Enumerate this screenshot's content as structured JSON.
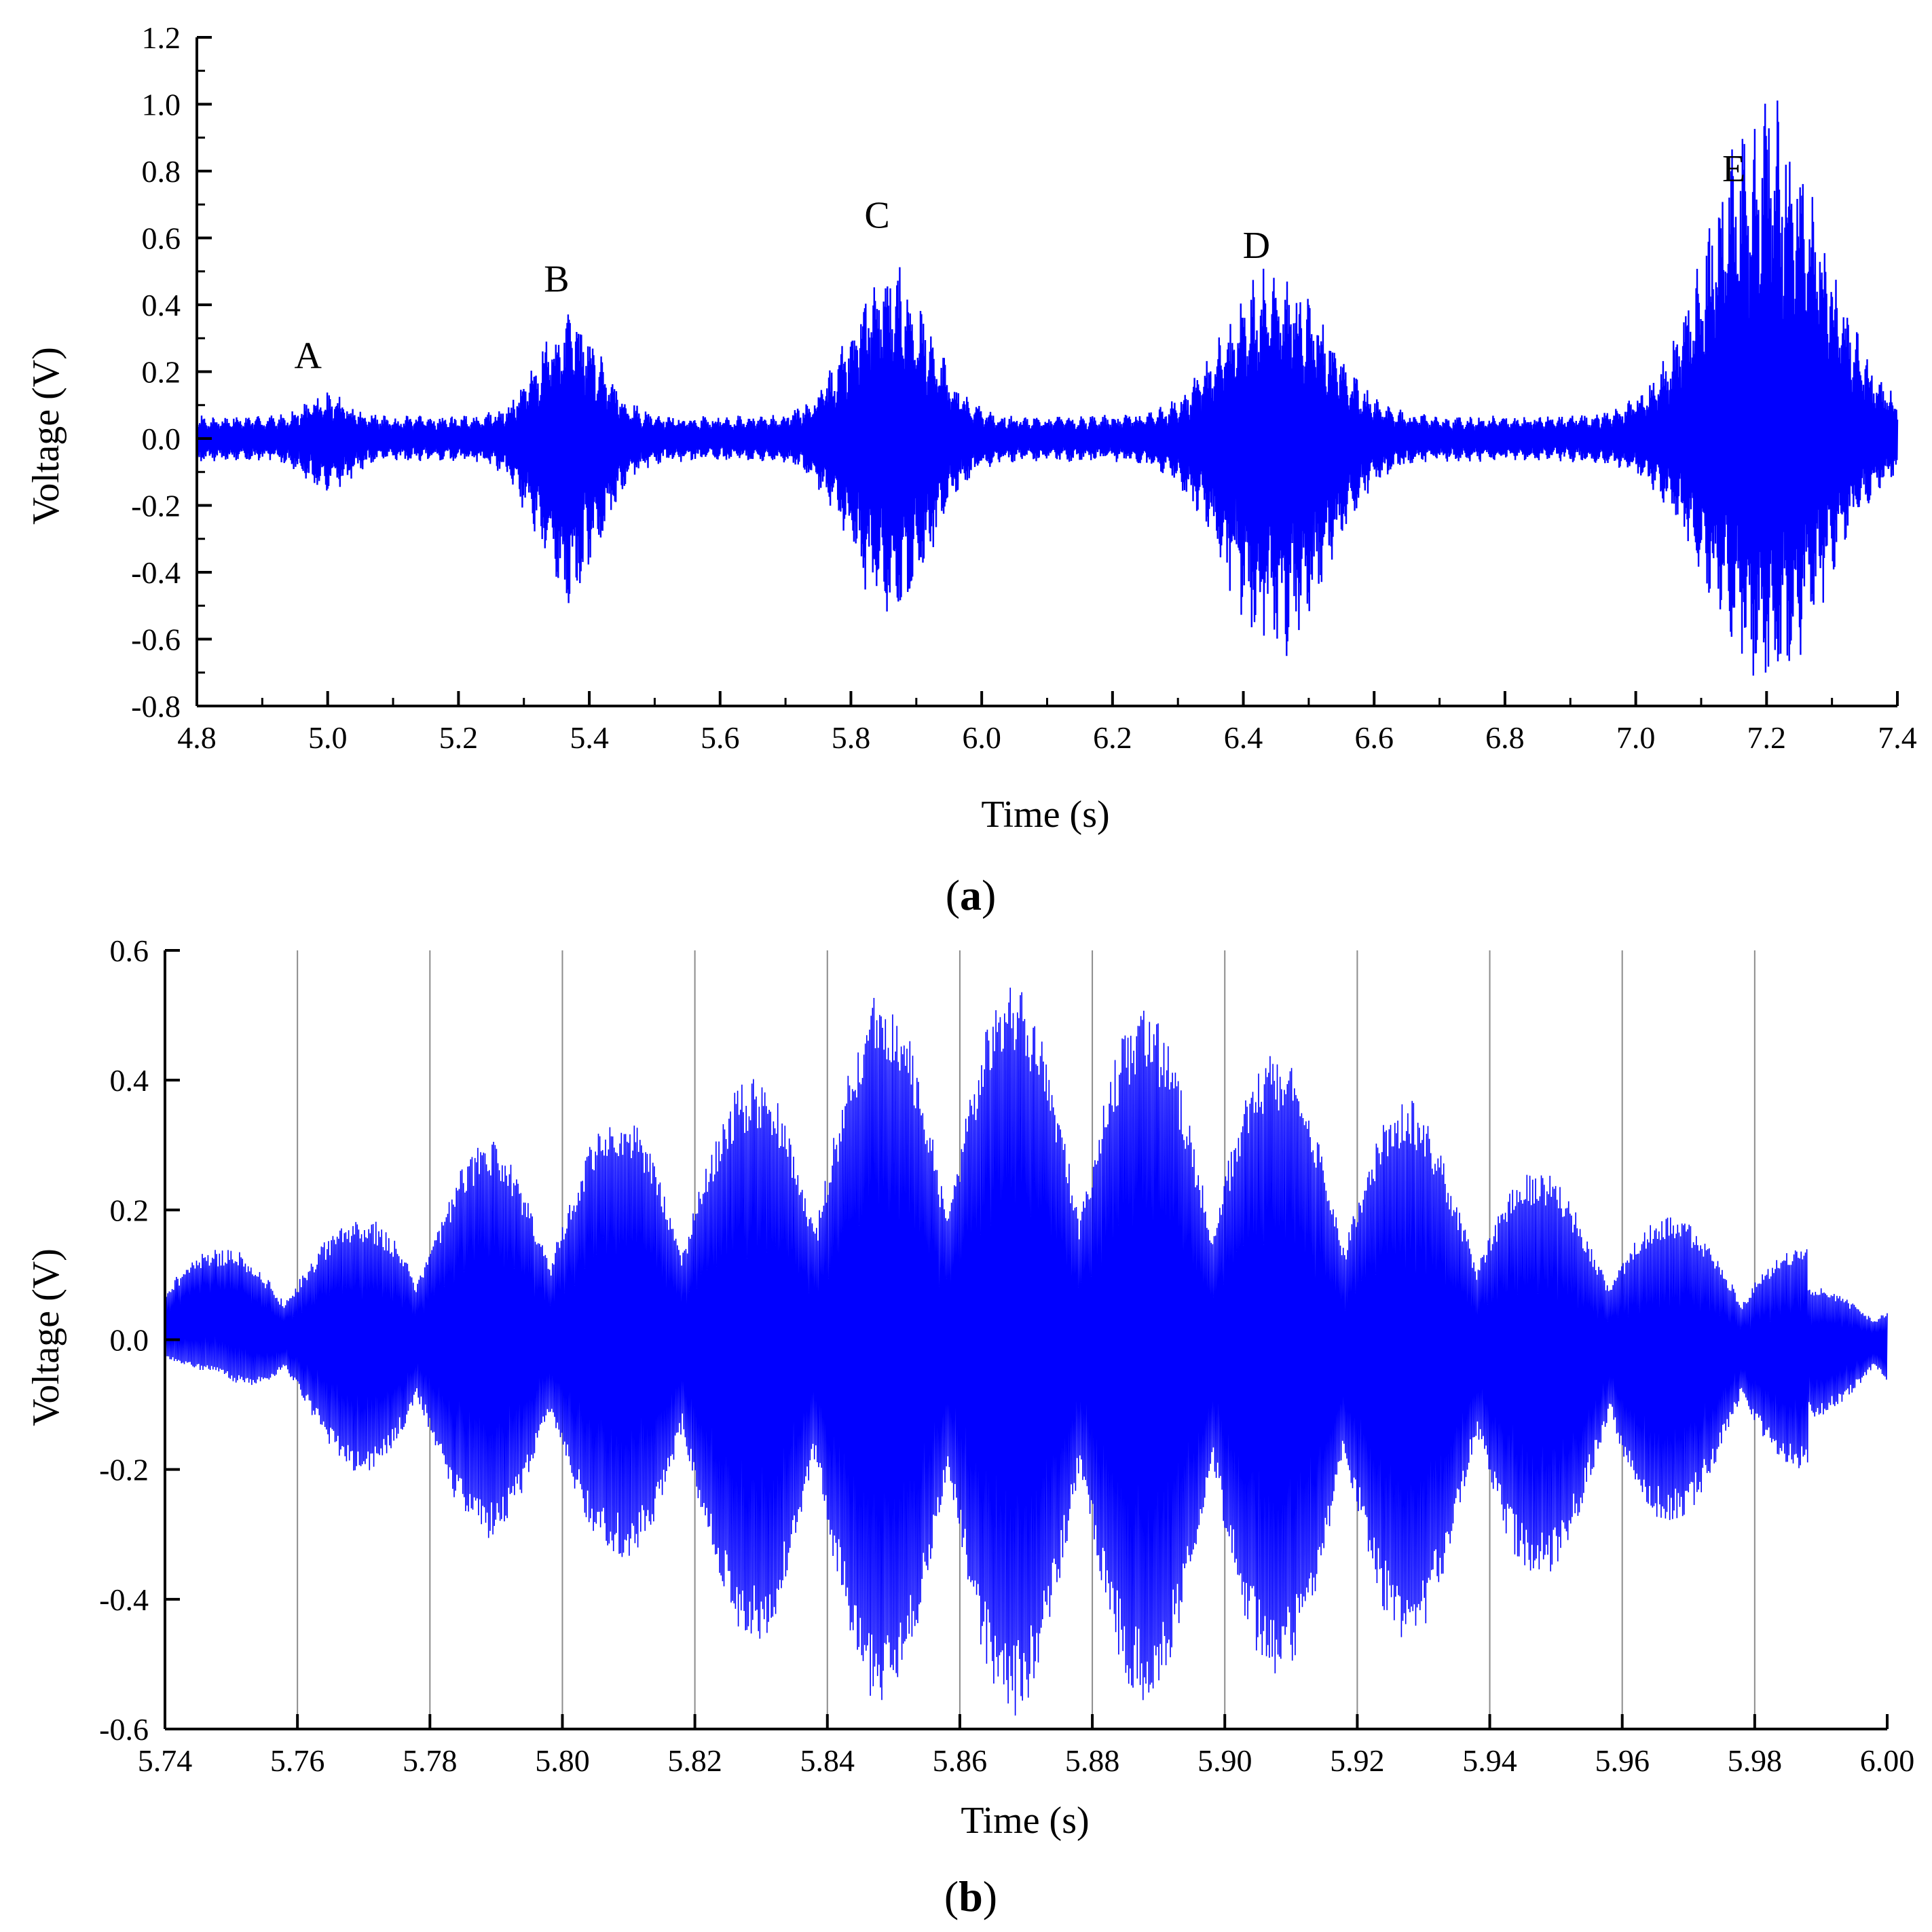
{
  "chart_data": [
    {
      "type": "line",
      "panel_label": {
        "open": "(",
        "letter": "a",
        "close": ")"
      },
      "xlabel": "Time (s)",
      "ylabel": "Voltage (V)",
      "xlim": [
        4.8,
        7.4
      ],
      "ylim": [
        -0.8,
        1.2
      ],
      "x_ticks": [
        "4.8",
        "5.0",
        "5.2",
        "5.4",
        "5.6",
        "5.8",
        "6.0",
        "6.2",
        "6.4",
        "6.6",
        "6.8",
        "7.0",
        "7.2",
        "7.4"
      ],
      "y_ticks": [
        "-0.8",
        "-0.6",
        "-0.4",
        "-0.2",
        "0.0",
        "0.2",
        "0.4",
        "0.6",
        "0.8",
        "1.0",
        "1.2"
      ],
      "grid": false,
      "line_color": "#0000ff",
      "baseline_envelope": 0.07,
      "annotations": [
        {
          "label": "A",
          "x": 4.97,
          "y": 0.21
        },
        {
          "label": "B",
          "x": 5.35,
          "y": 0.44
        },
        {
          "label": "C",
          "x": 5.84,
          "y": 0.63
        },
        {
          "label": "D",
          "x": 6.42,
          "y": 0.54
        },
        {
          "label": "E",
          "x": 7.15,
          "y": 0.77
        }
      ],
      "bursts": [
        {
          "label": "A",
          "center": 5.0,
          "half_width": 0.06,
          "max": 0.14,
          "min": -0.17
        },
        {
          "label": "B",
          "center": 5.37,
          "half_width": 0.09,
          "max": 0.39,
          "min": -0.51
        },
        {
          "label": "C",
          "center": 5.86,
          "half_width": 0.11,
          "max": 0.55,
          "min": -0.58
        },
        {
          "label": "D",
          "center": 6.45,
          "half_width": 0.14,
          "max": 0.54,
          "min": -0.68
        },
        {
          "label": "E",
          "center": 7.2,
          "half_width": 0.16,
          "max": 1.06,
          "min": -0.78
        }
      ]
    },
    {
      "type": "line",
      "panel_label": {
        "open": "(",
        "letter": "b",
        "close": ")"
      },
      "xlabel": "Time (s)",
      "ylabel": "Voltage (V)",
      "xlim": [
        5.74,
        6.0
      ],
      "ylim": [
        -0.6,
        0.6
      ],
      "x_ticks": [
        "5.74",
        "5.76",
        "5.78",
        "5.80",
        "5.82",
        "5.84",
        "5.86",
        "5.88",
        "5.90",
        "5.92",
        "5.94",
        "5.96",
        "5.98",
        "6.00"
      ],
      "y_ticks": [
        "-0.6",
        "-0.4",
        "-0.2",
        "0.0",
        "0.2",
        "0.4",
        "0.6"
      ],
      "grid": true,
      "grid_x": [
        5.76,
        5.78,
        5.8,
        5.82,
        5.84,
        5.86,
        5.88,
        5.9,
        5.92,
        5.94,
        5.96,
        5.98
      ],
      "line_color": "#0000ff",
      "envelope_peaks": [
        {
          "x": 5.748,
          "max": 0.14,
          "min": -0.05
        },
        {
          "x": 5.768,
          "max": 0.18,
          "min": -0.2
        },
        {
          "x": 5.788,
          "max": 0.31,
          "min": -0.31
        },
        {
          "x": 5.808,
          "max": 0.35,
          "min": -0.33
        },
        {
          "x": 5.828,
          "max": 0.4,
          "min": -0.47
        },
        {
          "x": 5.848,
          "max": 0.54,
          "min": -0.57
        },
        {
          "x": 5.868,
          "max": 0.55,
          "min": -0.58
        },
        {
          "x": 5.888,
          "max": 0.51,
          "min": -0.56
        },
        {
          "x": 5.908,
          "max": 0.44,
          "min": -0.52
        },
        {
          "x": 5.928,
          "max": 0.37,
          "min": -0.47
        },
        {
          "x": 5.945,
          "max": 0.27,
          "min": -0.38
        },
        {
          "x": 5.965,
          "max": 0.2,
          "min": -0.3
        },
        {
          "x": 5.988,
          "max": 0.14,
          "min": -0.2
        }
      ]
    }
  ]
}
